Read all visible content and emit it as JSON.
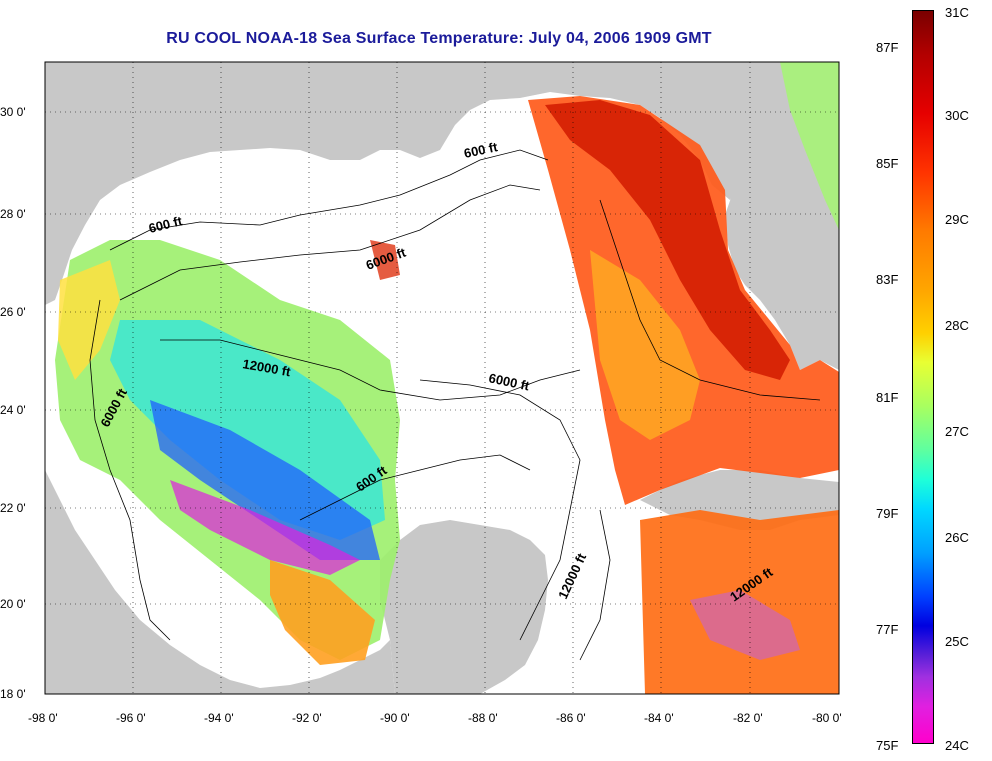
{
  "title": "RU COOL  NOAA-18  Sea Surface Temperature:  July 04, 2006 1909 GMT",
  "map": {
    "type": "sea-surface-temperature",
    "lat_range": [
      18,
      31
    ],
    "lon_range": [
      -98,
      -80
    ],
    "lat_ticks": [
      "30 0'",
      "28 0'",
      "26 0'",
      "24 0'",
      "22 0'",
      "20 0'",
      "18 0'"
    ],
    "lon_ticks": [
      "-98 0'",
      "-96 0'",
      "-94 0'",
      "-92 0'",
      "-90 0'",
      "-88 0'",
      "-86 0'",
      "-84 0'",
      "-82 0'",
      "-80 0'"
    ],
    "contour_labels": [
      "600 ft",
      "600 ft",
      "6000 ft",
      "12000 ft",
      "6000 ft",
      "6000 ft",
      "600 ft",
      "12000 ft",
      "12000 ft"
    ],
    "land_color": "#c8c8c8",
    "no_data_color": "#ffffff"
  },
  "colorbar": {
    "celsius": [
      "31C",
      "30C",
      "29C",
      "28C",
      "27C",
      "26C",
      "25C",
      "24C"
    ],
    "fahrenheit": [
      "87F",
      "85F",
      "83F",
      "81F",
      "79F",
      "77F",
      "75F"
    ],
    "range_c": [
      24,
      31
    ]
  }
}
